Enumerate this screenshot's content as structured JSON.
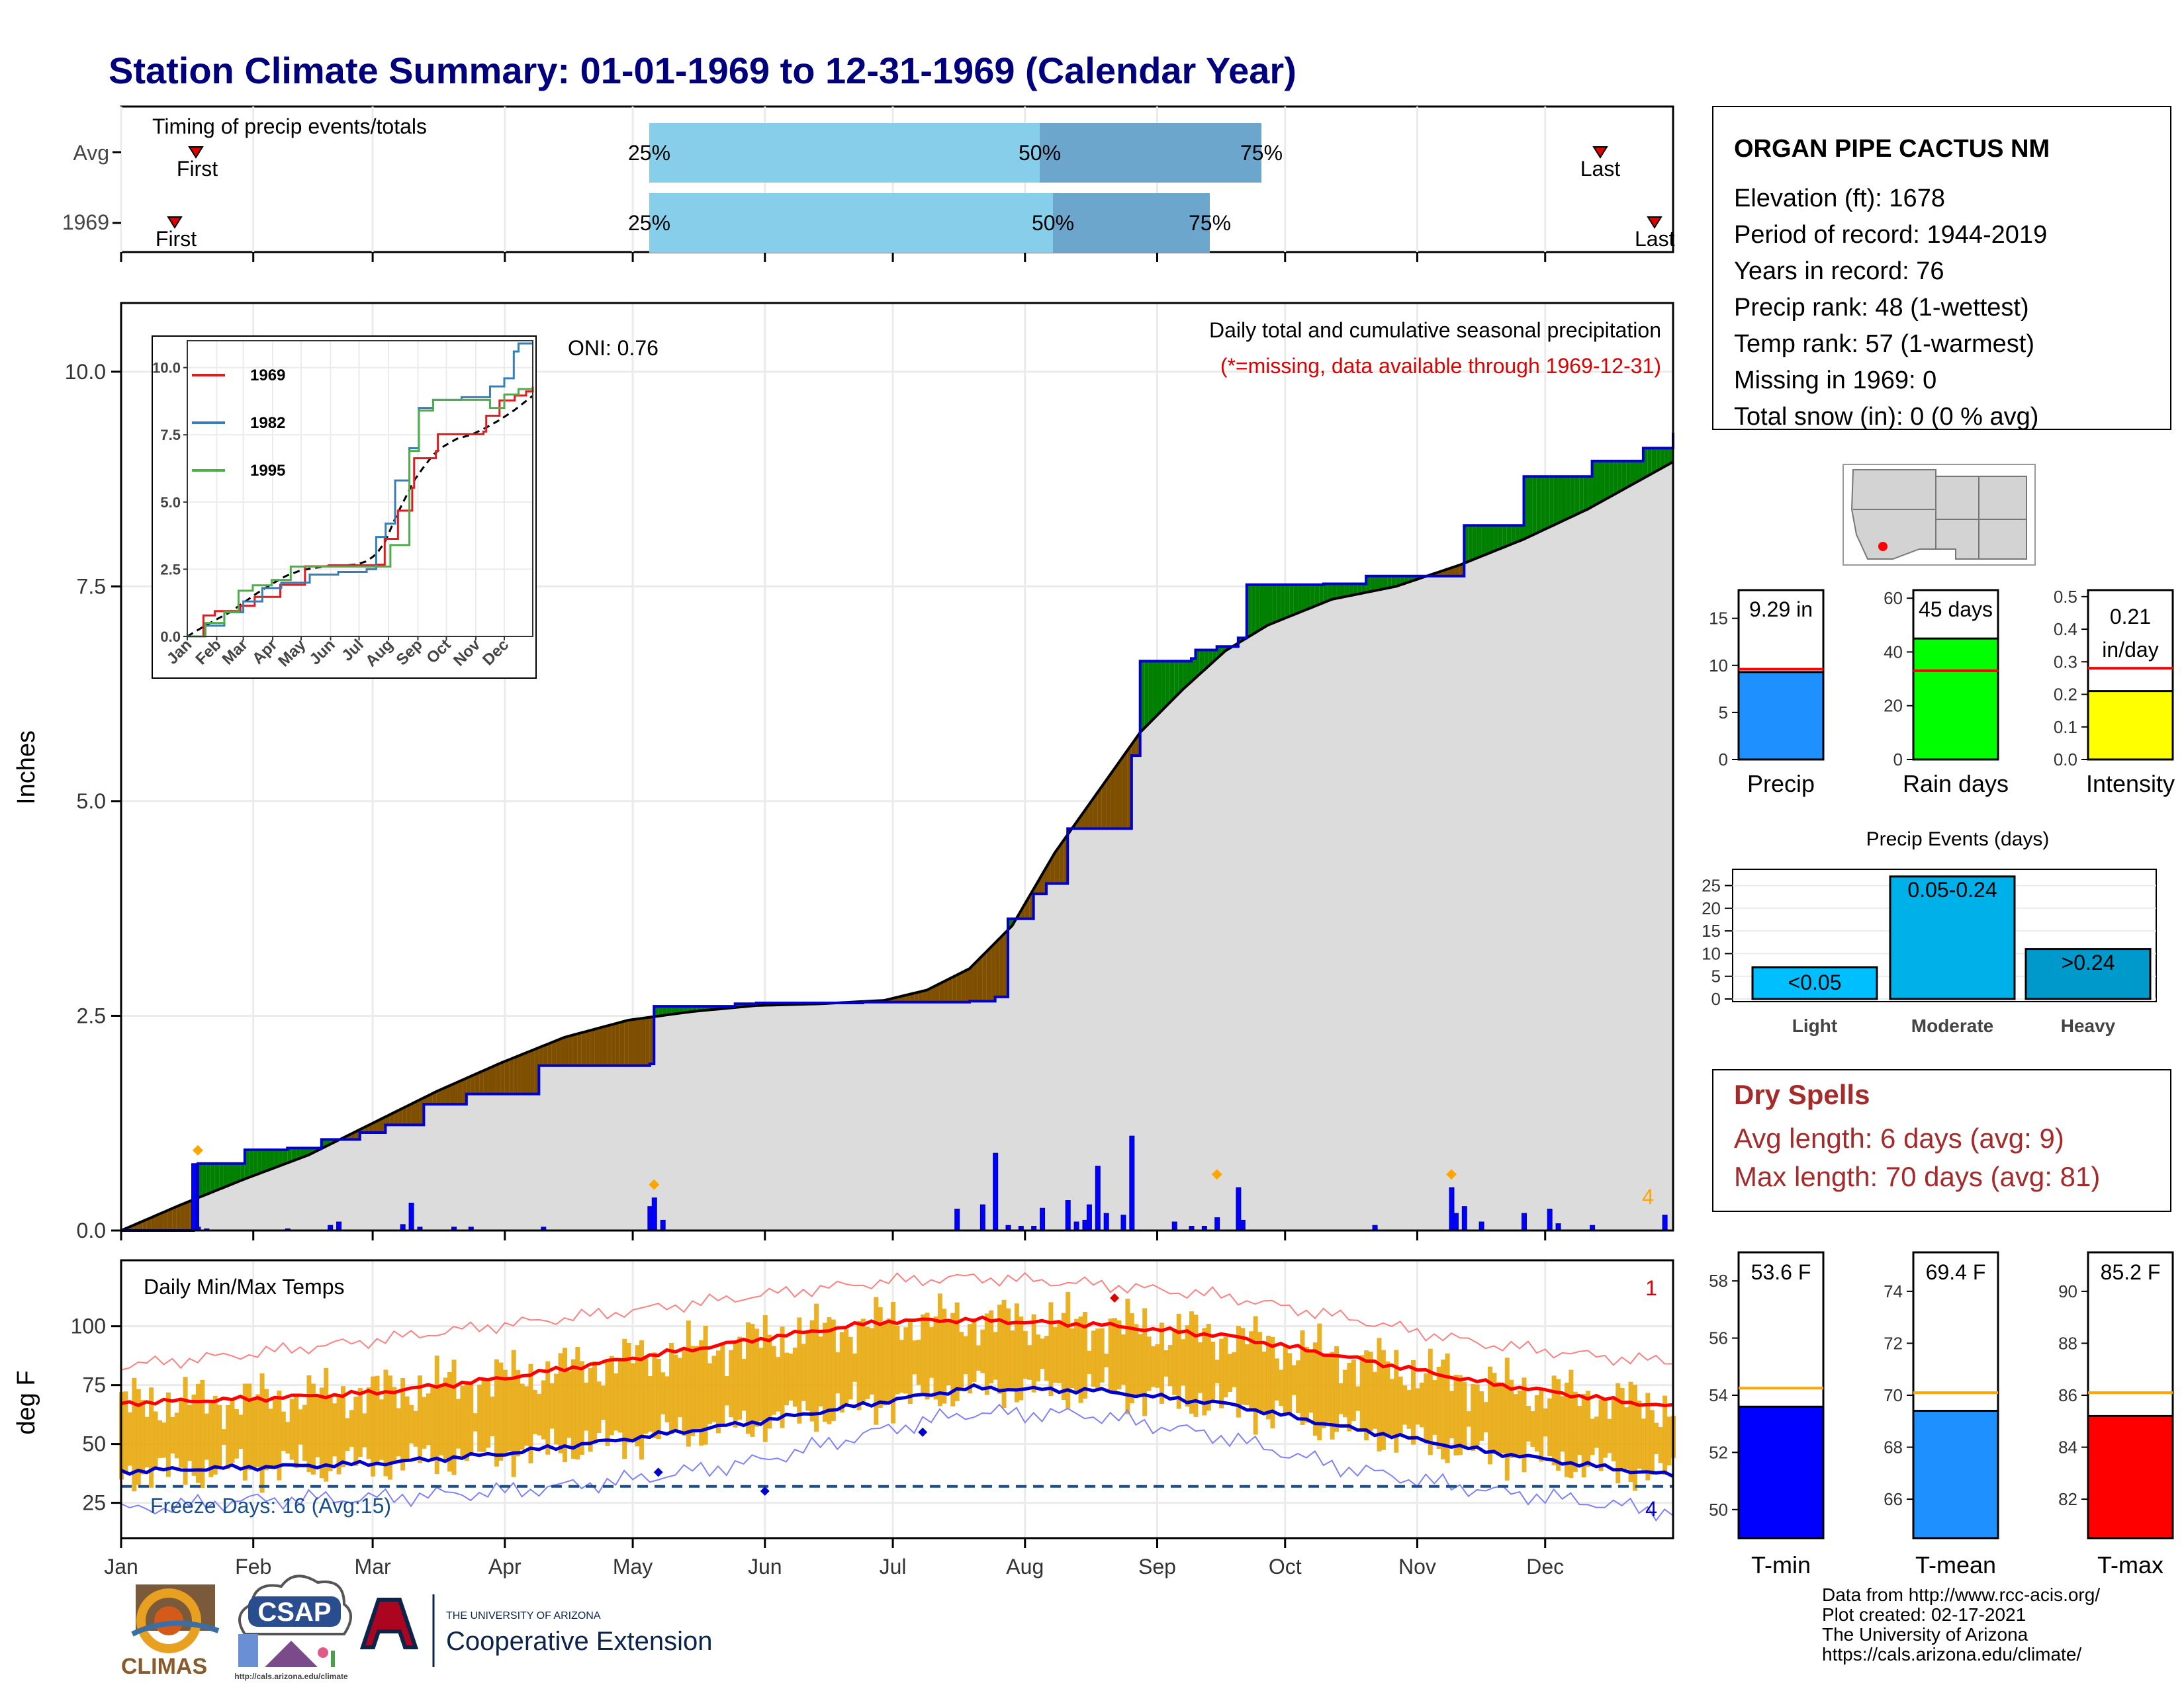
{
  "title": "Station Climate Summary: 01-01-1969 to 12-31-1969 (Calendar Year)",
  "timing_panel": {
    "label": "Timing of precip events/totals",
    "rows": [
      {
        "label": "Avg",
        "first_label": "First",
        "last_label": "Last",
        "p25": "25%",
        "p50": "50%",
        "p75": "75%"
      },
      {
        "label": "1969",
        "first_label": "First",
        "last_label": "Last",
        "p25": "25%",
        "p50": "50%",
        "p75": "75%"
      }
    ]
  },
  "precip_panel": {
    "ylabel": "Inches",
    "annotation": "Daily total and cumulative seasonal precipitation",
    "missing_note": "(*=missing, data available through 1969-12-31)",
    "oni": "ONI: 0.76",
    "corner_count": "4",
    "yticks": [
      "0.0",
      "2.5",
      "5.0",
      "7.5",
      "10.0"
    ]
  },
  "inset": {
    "yticks": [
      "0.0",
      "2.5",
      "5.0",
      "7.5",
      "10.0"
    ],
    "months": [
      "Jan",
      "Feb",
      "Mar",
      "Apr",
      "May",
      "Jun",
      "Jul",
      "Aug",
      "Sep",
      "Oct",
      "Nov",
      "Dec"
    ],
    "legend": [
      {
        "label": "1969",
        "color": "#e41a1c"
      },
      {
        "label": "1982",
        "color": "#377eb8"
      },
      {
        "label": "1995",
        "color": "#4daf4a"
      }
    ]
  },
  "temp_panel": {
    "label": "Daily Min/Max Temps",
    "ylabel": "deg F",
    "freeze_label": "Freeze Days: 16 (Avg:15)",
    "top_right": "1",
    "bottom_right": "4",
    "yticks": [
      "25",
      "50",
      "75",
      "100"
    ]
  },
  "months": [
    "Jan",
    "Feb",
    "Mar",
    "Apr",
    "May",
    "Jun",
    "Jul",
    "Aug",
    "Sep",
    "Oct",
    "Nov",
    "Dec"
  ],
  "station": {
    "name": "ORGAN PIPE CACTUS NM",
    "lines": [
      "Elevation (ft): 1678",
      "Period of record: 1944-2019",
      "Years in record: 76",
      "Precip rank: 48 (1-wettest)",
      "Temp rank: 57 (1-warmest)",
      "Missing in 1969: 0",
      "Total snow (in): 0 (0 % avg)"
    ]
  },
  "stat_bars": [
    {
      "label": "Precip",
      "value_text": "9.29 in",
      "value": 9.29,
      "avg": 9.6,
      "max": 18,
      "ticks": [
        "0",
        "5",
        "10",
        "15"
      ],
      "tick_values": [
        0,
        5,
        10,
        15
      ],
      "color": "#1e90ff"
    },
    {
      "label": "Rain days",
      "value_text": "45 days",
      "value": 45,
      "avg": 33,
      "max": 63,
      "ticks": [
        "0",
        "20",
        "40",
        "60"
      ],
      "tick_values": [
        0,
        20,
        40,
        60
      ],
      "color": "#00ff00"
    },
    {
      "label": "Intensity",
      "value_text": "0.21",
      "value_text2": "in/day",
      "value": 0.21,
      "avg": 0.28,
      "max": 0.52,
      "ticks": [
        "0.0",
        "0.1",
        "0.2",
        "0.3",
        "0.4",
        "0.5"
      ],
      "tick_values": [
        0,
        0.1,
        0.2,
        0.3,
        0.4,
        0.5
      ],
      "color": "#ffff00"
    }
  ],
  "events": {
    "title": "Precip Events (days)",
    "max": 28,
    "ticks": [
      "0",
      "5",
      "10",
      "15",
      "20",
      "25"
    ],
    "tick_values": [
      0,
      5,
      10,
      15,
      20,
      25
    ],
    "bars": [
      {
        "label": "Light",
        "bar_text": "<0.05",
        "value": 7,
        "color": "#00bfff"
      },
      {
        "label": "Moderate",
        "bar_text": "0.05-0.24",
        "value": 27,
        "color": "#00b0e8"
      },
      {
        "label": "Heavy",
        "bar_text": ">0.24",
        "value": 11,
        "color": "#0099cc"
      }
    ]
  },
  "dry_spells": {
    "title": "Dry Spells",
    "avg_line": "Avg length: 6 days (avg: 9)",
    "max_line": "Max length: 70 days (avg: 81)"
  },
  "temp_bars": [
    {
      "label": "T-min",
      "value_text": "53.6 F",
      "value": 53.6,
      "avg": 54.25,
      "min": 49,
      "max": 59,
      "ticks": [
        "50",
        "52",
        "54",
        "56",
        "58"
      ],
      "tick_values": [
        50,
        52,
        54,
        56,
        58
      ],
      "color": "#0000ff"
    },
    {
      "label": "T-mean",
      "value_text": "69.4 F",
      "value": 69.4,
      "avg": 70.1,
      "min": 64.5,
      "max": 75.5,
      "ticks": [
        "66",
        "68",
        "70",
        "72",
        "74"
      ],
      "tick_values": [
        66,
        68,
        70,
        72,
        74
      ],
      "color": "#1e90ff"
    },
    {
      "label": "T-max",
      "value_text": "85.2 F",
      "value": 85.2,
      "avg": 86.1,
      "min": 80.5,
      "max": 91.5,
      "ticks": [
        "82",
        "84",
        "86",
        "88",
        "90"
      ],
      "tick_values": [
        82,
        84,
        86,
        88,
        90
      ],
      "color": "#ff0000"
    }
  ],
  "footer": {
    "lines": [
      "Data from http://www.rcc-acis.org/",
      "Plot created: 02-17-2021",
      "The University of Arizona",
      "https://cals.arizona.edu/climate/"
    ]
  },
  "logos": {
    "climas": "CLIMAS",
    "csap": "CSAP",
    "csap_url": "http://cals.arizona.edu/climate",
    "ua_small": "THE UNIVERSITY OF ARIZONA",
    "ua_big": "Cooperative Extension"
  },
  "chart_data": {
    "type": "area",
    "x_axis": "day of year 1969",
    "cumulative_1969": {
      "x": [
        1,
        18,
        19,
        30,
        40,
        48,
        57,
        63,
        72,
        82,
        99,
        125,
        126,
        145,
        150,
        175,
        200,
        206,
        209,
        215,
        218,
        223,
        238,
        240,
        252,
        253,
        258,
        263,
        265,
        283,
        293,
        313,
        316,
        330,
        346,
        358,
        365
      ],
      "y": [
        0,
        0.02,
        0.78,
        0.94,
        0.96,
        1.06,
        1.14,
        1.23,
        1.47,
        1.59,
        1.92,
        1.94,
        2.61,
        2.64,
        2.65,
        2.66,
        2.67,
        2.72,
        3.63,
        3.92,
        4.04,
        4.68,
        5.53,
        6.63,
        6.66,
        6.76,
        6.8,
        6.9,
        7.52,
        7.53,
        7.62,
        7.62,
        8.21,
        8.78,
        8.96,
        9.11,
        9.29
      ]
    },
    "avg_cumulative": {
      "x": [
        1,
        15,
        30,
        45,
        60,
        75,
        90,
        105,
        120,
        135,
        150,
        165,
        180,
        190,
        200,
        210,
        220,
        230,
        240,
        250,
        260,
        270,
        285,
        300,
        315,
        330,
        345,
        365
      ],
      "y": [
        0,
        0.3,
        0.6,
        0.88,
        1.25,
        1.62,
        1.95,
        2.25,
        2.45,
        2.55,
        2.62,
        2.64,
        2.68,
        2.8,
        3.05,
        3.55,
        4.4,
        5.1,
        5.8,
        6.3,
        6.75,
        7.05,
        7.35,
        7.5,
        7.75,
        8.05,
        8.4,
        8.95
      ]
    },
    "daily_precip": {
      "x": [
        18,
        19,
        21,
        40,
        50,
        52,
        67,
        69,
        71,
        79,
        83,
        100,
        125,
        126,
        128,
        197,
        203,
        206,
        209,
        212,
        215,
        217,
        223,
        225,
        227,
        228,
        230,
        232,
        236,
        238,
        248,
        252,
        255,
        258,
        263,
        264,
        295,
        313,
        314,
        316,
        320,
        330,
        336,
        338,
        346,
        363
      ],
      "y": [
        0.78,
        0.04,
        0.02,
        0.02,
        0.06,
        0.1,
        0.07,
        0.32,
        0.04,
        0.04,
        0.04,
        0.04,
        0.28,
        0.38,
        0.12,
        0.25,
        0.3,
        0.9,
        0.06,
        0.05,
        0.05,
        0.26,
        0.35,
        0.1,
        0.12,
        0.3,
        0.75,
        0.2,
        0.18,
        1.1,
        0.1,
        0.05,
        0.05,
        0.15,
        0.5,
        0.12,
        0.06,
        0.5,
        0.2,
        0.28,
        0.1,
        0.2,
        0.25,
        0.08,
        0.06,
        0.18
      ]
    },
    "inset_series": [
      {
        "name": "1969",
        "color": "#e41a1c",
        "x": [
          1,
          18,
          30,
          57,
          72,
          99,
          125,
          150,
          200,
          209,
          223,
          238,
          240,
          263,
          265,
          313,
          316,
          330,
          346,
          358,
          365
        ],
        "y": [
          0,
          0.78,
          0.94,
          1.14,
          1.47,
          1.92,
          2.61,
          2.65,
          2.67,
          3.63,
          4.68,
          5.53,
          6.63,
          6.9,
          7.52,
          7.62,
          8.21,
          8.78,
          8.96,
          9.11,
          9.29
        ]
      },
      {
        "name": "1982",
        "color": "#377eb8",
        "x": [
          1,
          20,
          40,
          60,
          80,
          100,
          130,
          160,
          190,
          200,
          210,
          220,
          235,
          245,
          260,
          290,
          300,
          320,
          335,
          345,
          350,
          365
        ],
        "y": [
          0,
          0.4,
          0.9,
          1.3,
          1.8,
          2.0,
          2.3,
          2.4,
          2.5,
          3.7,
          4.2,
          5.8,
          7.0,
          8.5,
          8.8,
          8.9,
          8.9,
          9.3,
          9.6,
          10.6,
          10.9,
          10.9
        ]
      },
      {
        "name": "1995",
        "color": "#4daf4a",
        "x": [
          1,
          20,
          40,
          55,
          70,
          90,
          110,
          140,
          170,
          200,
          215,
          225,
          235,
          245,
          260,
          285,
          305,
          320,
          335,
          350,
          365
        ],
        "y": [
          0,
          0.5,
          0.9,
          1.7,
          1.9,
          2.1,
          2.6,
          2.6,
          2.6,
          2.6,
          3.4,
          3.4,
          6.9,
          8.4,
          8.8,
          8.8,
          8.8,
          8.5,
          9.0,
          9.2,
          9.2
        ]
      }
    ],
    "temps": {
      "avg_max": {
        "x": [
          1,
          30,
          60,
          90,
          120,
          150,
          180,
          200,
          230,
          260,
          290,
          320,
          350,
          365
        ],
        "y": [
          67,
          69,
          72,
          78,
          86,
          94,
          102,
          103,
          101,
          96,
          86,
          76,
          69,
          66
        ]
      },
      "avg_min": {
        "x": [
          1,
          30,
          60,
          90,
          120,
          150,
          180,
          200,
          230,
          260,
          290,
          320,
          350,
          365
        ],
        "y": [
          38,
          40,
          42,
          46,
          52,
          59,
          68,
          74,
          73,
          67,
          56,
          47,
          40,
          37
        ]
      },
      "record_max": {
        "x": [
          1,
          30,
          60,
          90,
          120,
          150,
          180,
          200,
          230,
          260,
          290,
          320,
          350,
          365
        ],
        "y": [
          84,
          88,
          93,
          100,
          107,
          114,
          119,
          120,
          117,
          113,
          104,
          93,
          86,
          84
        ]
      },
      "record_min": {
        "x": [
          1,
          30,
          60,
          90,
          120,
          150,
          180,
          200,
          230,
          260,
          290,
          320,
          350,
          365
        ],
        "y": [
          22,
          25,
          26,
          30,
          36,
          43,
          55,
          62,
          62,
          54,
          40,
          30,
          23,
          20
        ]
      },
      "freeze_line": 32
    }
  }
}
